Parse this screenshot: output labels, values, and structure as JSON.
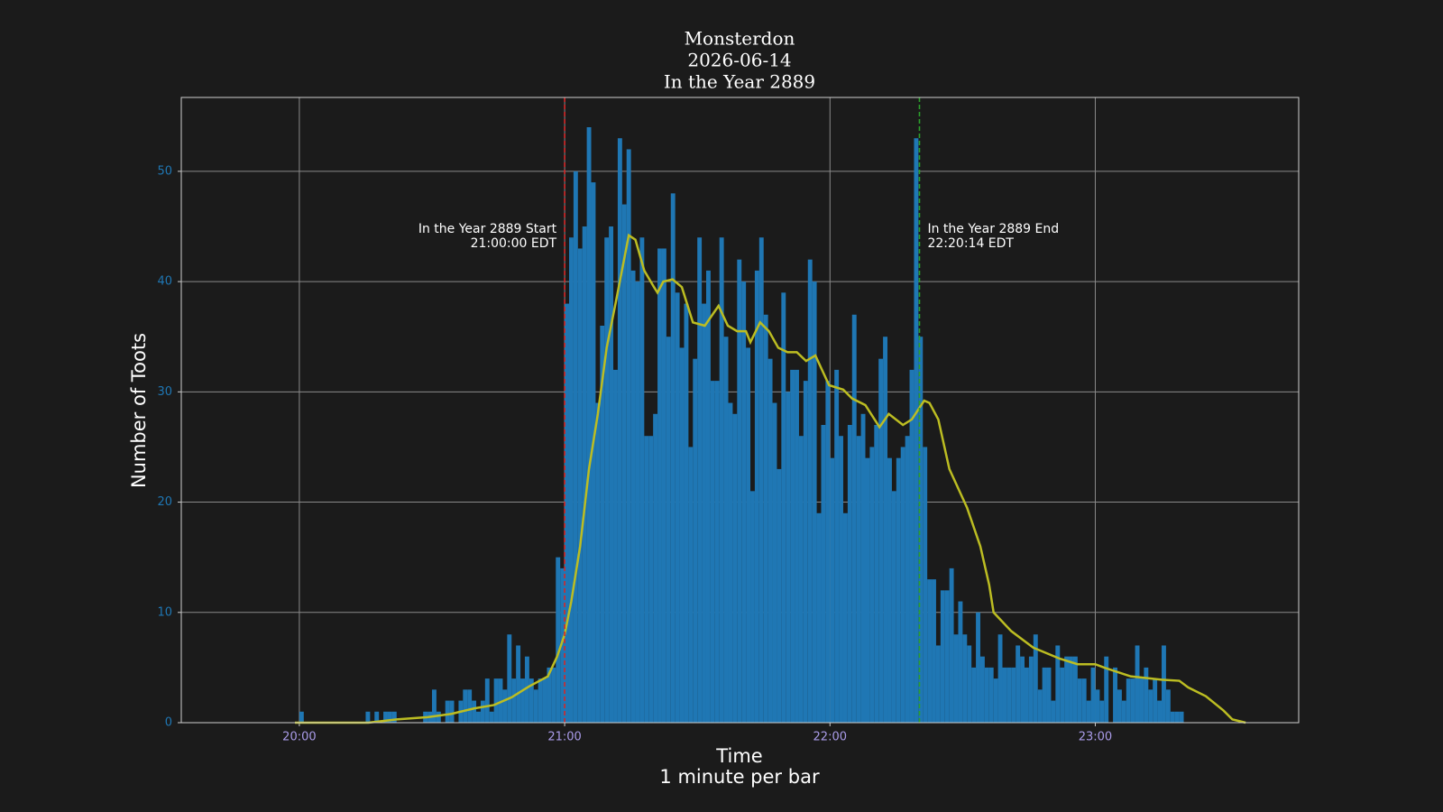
{
  "chart_data": {
    "type": "histogram",
    "title": [
      "Monsterdon",
      "2026-06-14",
      "In the Year 2889"
    ],
    "xlabel": [
      "Time",
      "1 minute per bar"
    ],
    "ylabel": "Number of Toots",
    "bins": [
      1200,
      1201,
      1202,
      1203,
      1204,
      1205,
      1206,
      1207,
      1208,
      1209,
      1210,
      1211,
      1212,
      1213,
      1214,
      1215,
      1216,
      1217,
      1218,
      1219,
      1220,
      1221,
      1222,
      1223,
      1224,
      1225,
      1226,
      1227,
      1228,
      1229,
      1230,
      1231,
      1232,
      1233,
      1234,
      1235,
      1236,
      1237,
      1238,
      1239,
      1240,
      1241,
      1242,
      1243,
      1244,
      1245,
      1246,
      1247,
      1248,
      1249,
      1250,
      1251,
      1252,
      1253,
      1254,
      1255,
      1256,
      1257,
      1258,
      1259,
      1260,
      1261,
      1262,
      1263,
      1264,
      1265,
      1266,
      1267,
      1268,
      1269,
      1270,
      1271,
      1272,
      1273,
      1274,
      1275,
      1276,
      1277,
      1278,
      1279,
      1280,
      1281,
      1282,
      1283,
      1284,
      1285,
      1286,
      1287,
      1288,
      1289,
      1290,
      1291,
      1292,
      1293,
      1294,
      1295,
      1296,
      1297,
      1298,
      1299,
      1300,
      1301,
      1302,
      1303,
      1304,
      1305,
      1306,
      1307,
      1308,
      1309,
      1310,
      1311,
      1312,
      1313,
      1314,
      1315,
      1316,
      1317,
      1318,
      1319,
      1320,
      1321,
      1322,
      1323,
      1324,
      1325,
      1326,
      1327,
      1328,
      1329,
      1330,
      1331,
      1332,
      1333,
      1334,
      1335,
      1336,
      1337,
      1338,
      1339,
      1340,
      1341,
      1342,
      1343,
      1344,
      1345,
      1346,
      1347,
      1348,
      1349,
      1350,
      1351,
      1352,
      1353,
      1354,
      1355,
      1356,
      1357,
      1358,
      1359,
      1360,
      1361,
      1362,
      1363,
      1364,
      1365,
      1366,
      1367,
      1368,
      1369,
      1370,
      1371,
      1372,
      1373,
      1374,
      1375,
      1376,
      1377,
      1378,
      1379,
      1380,
      1381,
      1382,
      1383,
      1384,
      1385,
      1386,
      1387,
      1388,
      1389,
      1390,
      1391,
      1392,
      1393,
      1394,
      1395,
      1396,
      1397,
      1398,
      1399,
      1400
    ],
    "values": [
      1,
      0,
      0,
      0,
      0,
      0,
      0,
      0,
      0,
      0,
      0,
      0,
      0,
      0,
      0,
      1,
      0,
      1,
      0,
      1,
      1,
      1,
      0,
      0,
      0,
      0,
      0,
      0,
      1,
      1,
      3,
      1,
      0,
      2,
      2,
      0,
      2,
      3,
      3,
      2,
      1,
      2,
      4,
      1,
      4,
      4,
      3,
      8,
      4,
      7,
      4,
      6,
      4,
      3,
      4,
      4,
      5,
      5,
      15,
      14,
      38,
      44,
      50,
      43,
      45,
      54,
      49,
      29,
      36,
      44,
      45,
      32,
      53,
      47,
      52,
      41,
      40,
      44,
      26,
      26,
      28,
      43,
      43,
      35,
      48,
      39,
      34,
      38,
      25,
      33,
      44,
      38,
      41,
      31,
      31,
      44,
      35,
      29,
      28,
      42,
      40,
      34,
      21,
      41,
      44,
      37,
      33,
      29,
      23,
      39,
      30,
      32,
      32,
      26,
      31,
      42,
      40,
      19,
      27,
      31,
      24,
      32,
      26,
      19,
      27,
      37,
      26,
      28,
      24,
      25,
      27,
      33,
      35,
      24,
      21,
      24,
      25,
      26,
      32,
      53,
      35,
      25,
      13,
      13,
      7,
      12,
      12,
      14,
      8,
      11,
      8,
      7,
      5,
      10,
      6,
      5,
      5,
      4,
      8,
      5,
      5,
      5,
      7,
      6,
      5,
      6,
      8,
      3,
      5,
      5,
      2,
      7,
      5,
      6,
      6,
      6,
      4,
      4,
      2,
      5,
      3,
      2,
      6,
      0,
      5,
      3,
      2,
      4,
      4,
      7,
      4,
      5,
      3,
      4,
      2,
      7,
      3,
      1,
      1,
      1
    ],
    "color": "#1f77b4",
    "line": {
      "color": "#bcbd22",
      "x": [
        1199,
        1215.6,
        1222,
        1229,
        1234.4,
        1239.6,
        1244,
        1248,
        1252,
        1256.2,
        1258.3,
        1260,
        1261.5,
        1263.5,
        1265.5,
        1267.5,
        1269.5,
        1271.5,
        1274.5,
        1276,
        1278,
        1280.2,
        1281,
        1282.3,
        1284.4,
        1286.5,
        1289,
        1291.7,
        1294.8,
        1296.9,
        1299,
        1301,
        1302,
        1304.2,
        1306.2,
        1308.3,
        1310.4,
        1312.5,
        1314.6,
        1316.7,
        1319.8,
        1323,
        1325,
        1328,
        1331.2,
        1333.3,
        1336.5,
        1338.5,
        1341.3,
        1342.5,
        1344.5,
        1347,
        1351,
        1354,
        1356,
        1357,
        1361,
        1366,
        1372,
        1376,
        1380,
        1382,
        1388,
        1395,
        1399,
        1401,
        1405,
        1409,
        1411,
        1414
      ],
      "y": [
        0,
        0,
        0.3,
        0.5,
        0.8,
        1.3,
        1.6,
        2.3,
        3.3,
        4.2,
        6,
        8,
        11,
        16,
        23,
        28,
        34,
        38,
        44.2,
        43.8,
        41,
        39.5,
        39,
        40,
        40.2,
        39.5,
        36.3,
        36,
        37.8,
        36,
        35.5,
        35.5,
        34.5,
        36.3,
        35.5,
        34,
        33.6,
        33.6,
        32.8,
        33.3,
        30.6,
        30.2,
        29.4,
        28.8,
        26.8,
        28,
        27,
        27.5,
        29.2,
        29,
        27.5,
        23,
        19.5,
        16,
        12.5,
        10,
        8.3,
        6.8,
        5.8,
        5.3,
        5.3,
        5,
        4.2,
        3.9,
        3.8,
        3.2,
        2.4,
        1.1,
        0.3,
        0
      ]
    },
    "vlines": [
      {
        "x": 1260,
        "color": "#d62728",
        "label": [
          "In the Year 2889 Start",
          "21:00:00 EDT"
        ]
      },
      {
        "x": 1340.2333,
        "color": "#2ca02c",
        "label": [
          "In the Year 2889 End",
          "22:20:14 EDT"
        ]
      }
    ],
    "xlim": [
      1173.3,
      1426
    ],
    "ylim": [
      0,
      56.7
    ],
    "xticks": [
      {
        "value": 1200,
        "label": "20:00"
      },
      {
        "value": 1260,
        "label": "21:00"
      },
      {
        "value": 1320,
        "label": "22:00"
      },
      {
        "value": 1380,
        "label": "23:00"
      }
    ],
    "yticks": [
      0,
      10,
      20,
      30,
      40,
      50
    ],
    "xtick_color": "#a99be8",
    "ytick_color": "#1f77b4",
    "grid": true
  }
}
